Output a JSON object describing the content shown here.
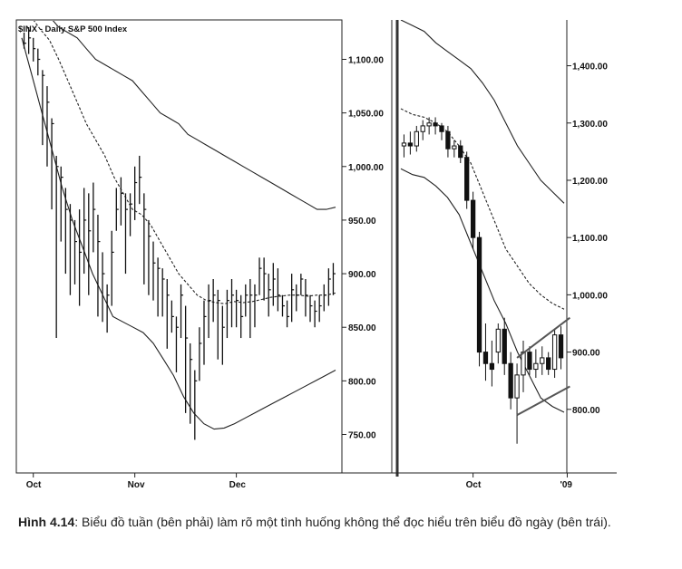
{
  "caption": {
    "label": "Hình 4.14",
    "text": ": Biểu đồ tuần (bên phải) làm rõ một tình huống không thể đọc hiểu trên biểu đồ ngày (bên trái)."
  },
  "chart_data": [
    {
      "type": "bar",
      "title": "$INX - Daily  S&P 500 Index",
      "ylim": [
        720,
        1130
      ],
      "yticks": [
        "1,100.00",
        "1,050.00",
        "1,000.00",
        "950.00",
        "900.00",
        "850.00",
        "800.00",
        "750.00"
      ],
      "ytick_values": [
        1100,
        1050,
        1000,
        950,
        900,
        850,
        800,
        750
      ],
      "xticks": [
        "Oct",
        "Nov",
        "Dec"
      ],
      "xtick_index": [
        2,
        24,
        46
      ],
      "bars": [
        [
          1115,
          1125,
          1110
        ],
        [
          1120,
          1130,
          1105
        ],
        [
          1110,
          1120,
          1098
        ],
        [
          1100,
          1110,
          1085
        ],
        [
          1085,
          1090,
          1020
        ],
        [
          1060,
          1075,
          1000
        ],
        [
          1040,
          1045,
          960
        ],
        [
          1000,
          1010,
          840
        ],
        [
          990,
          1000,
          930
        ],
        [
          960,
          980,
          900
        ],
        [
          950,
          965,
          880
        ],
        [
          930,
          950,
          890
        ],
        [
          920,
          960,
          870
        ],
        [
          950,
          980,
          900
        ],
        [
          940,
          975,
          880
        ],
        [
          960,
          985,
          920
        ],
        [
          930,
          955,
          860
        ],
        [
          900,
          920,
          855
        ],
        [
          880,
          890,
          845
        ],
        [
          920,
          940,
          870
        ],
        [
          960,
          980,
          940
        ],
        [
          975,
          990,
          945
        ],
        [
          960,
          975,
          900
        ],
        [
          965,
          975,
          935
        ],
        [
          985,
          1000,
          950
        ],
        [
          990,
          1010,
          965
        ],
        [
          960,
          975,
          890
        ],
        [
          935,
          950,
          880
        ],
        [
          910,
          930,
          875
        ],
        [
          905,
          915,
          860
        ],
        [
          895,
          905,
          860
        ],
        [
          880,
          895,
          830
        ],
        [
          860,
          875,
          845
        ],
        [
          850,
          860,
          808
        ],
        [
          880,
          890,
          840
        ],
        [
          840,
          870,
          770
        ],
        [
          820,
          835,
          760
        ],
        [
          800,
          810,
          745
        ],
        [
          835,
          850,
          800
        ],
        [
          860,
          875,
          815
        ],
        [
          875,
          890,
          840
        ],
        [
          880,
          895,
          855
        ],
        [
          875,
          885,
          820
        ],
        [
          850,
          870,
          815
        ],
        [
          875,
          885,
          840
        ],
        [
          880,
          895,
          850
        ],
        [
          875,
          885,
          850
        ],
        [
          860,
          880,
          840
        ],
        [
          880,
          890,
          860
        ],
        [
          880,
          895,
          840
        ],
        [
          880,
          890,
          850
        ],
        [
          905,
          915,
          880
        ],
        [
          900,
          915,
          875
        ],
        [
          885,
          900,
          860
        ],
        [
          895,
          910,
          870
        ],
        [
          880,
          905,
          865
        ],
        [
          870,
          880,
          860
        ],
        [
          860,
          875,
          850
        ],
        [
          885,
          900,
          855
        ],
        [
          880,
          890,
          865
        ],
        [
          895,
          900,
          880
        ],
        [
          880,
          895,
          860
        ],
        [
          870,
          880,
          855
        ],
        [
          865,
          875,
          850
        ],
        [
          870,
          880,
          855
        ],
        [
          880,
          890,
          865
        ],
        [
          895,
          905,
          870
        ],
        [
          900,
          910,
          880
        ]
      ],
      "upper_band": [
        1170,
        1160,
        1150,
        1140,
        1130,
        1125,
        1120,
        1110,
        1100,
        1095,
        1090,
        1085,
        1080,
        1070,
        1060,
        1050,
        1045,
        1040,
        1030,
        1025,
        1020,
        1015,
        1010,
        1005,
        1000,
        995,
        990,
        985,
        980,
        975,
        970,
        965,
        960,
        960,
        962
      ],
      "middle_ma": [
        1150,
        1140,
        1128,
        1118,
        1100,
        1080,
        1060,
        1040,
        1025,
        1010,
        990,
        975,
        960,
        955,
        945,
        930,
        915,
        900,
        890,
        880,
        875,
        873,
        872,
        874,
        873,
        874,
        876,
        878,
        879,
        880,
        880,
        879,
        880,
        880,
        882
      ],
      "lower_band": [
        1120,
        1085,
        1050,
        1015,
        980,
        950,
        925,
        900,
        880,
        860,
        855,
        850,
        845,
        835,
        820,
        805,
        785,
        770,
        760,
        755,
        756,
        760,
        765,
        770,
        775,
        780,
        785,
        790,
        795,
        800,
        805,
        810
      ]
    },
    {
      "type": "candlestick",
      "ylim": [
        700,
        1480
      ],
      "yticks": [
        "1,400.00",
        "1,300.00",
        "1,200.00",
        "1,100.00",
        "1,000.00",
        "900.00",
        "800.00"
      ],
      "ytick_values": [
        1400,
        1300,
        1200,
        1100,
        1000,
        900,
        800
      ],
      "xticks": [
        "Oct",
        "'09"
      ],
      "xtick_index": [
        11,
        26
      ],
      "candles": [
        [
          1260,
          1280,
          1240,
          1265
        ],
        [
          1265,
          1285,
          1245,
          1260
        ],
        [
          1260,
          1295,
          1250,
          1285
        ],
        [
          1285,
          1305,
          1270,
          1295
        ],
        [
          1295,
          1310,
          1280,
          1300
        ],
        [
          1300,
          1310,
          1280,
          1295
        ],
        [
          1295,
          1300,
          1270,
          1285
        ],
        [
          1285,
          1295,
          1240,
          1255
        ],
        [
          1255,
          1270,
          1240,
          1260
        ],
        [
          1260,
          1270,
          1230,
          1240
        ],
        [
          1240,
          1250,
          1150,
          1165
        ],
        [
          1165,
          1180,
          1080,
          1100
        ],
        [
          1100,
          1110,
          875,
          900
        ],
        [
          900,
          950,
          850,
          880
        ],
        [
          880,
          920,
          840,
          870
        ],
        [
          900,
          950,
          880,
          940
        ],
        [
          940,
          960,
          860,
          880
        ],
        [
          880,
          900,
          800,
          820
        ],
        [
          820,
          880,
          740,
          860
        ],
        [
          860,
          920,
          830,
          900
        ],
        [
          900,
          910,
          860,
          870
        ],
        [
          870,
          905,
          855,
          880
        ],
        [
          880,
          910,
          860,
          890
        ],
        [
          890,
          900,
          860,
          870
        ],
        [
          870,
          940,
          855,
          930
        ],
        [
          930,
          945,
          870,
          890
        ]
      ],
      "upper_band": [
        1480,
        1470,
        1460,
        1440,
        1425,
        1410,
        1395,
        1370,
        1340,
        1300,
        1260,
        1230,
        1200,
        1180,
        1160
      ],
      "middle_ma": [
        1325,
        1315,
        1310,
        1300,
        1285,
        1260,
        1230,
        1180,
        1130,
        1080,
        1050,
        1020,
        1000,
        985,
        975
      ],
      "lower_band": [
        1220,
        1210,
        1205,
        1190,
        1170,
        1140,
        1090,
        1040,
        990,
        950,
        900,
        860,
        820,
        805,
        795
      ],
      "trendlines": [
        {
          "from": [
            18,
            890
          ],
          "to": [
            27,
            960
          ]
        },
        {
          "from": [
            18,
            790
          ],
          "to": [
            27,
            840
          ]
        }
      ]
    }
  ]
}
